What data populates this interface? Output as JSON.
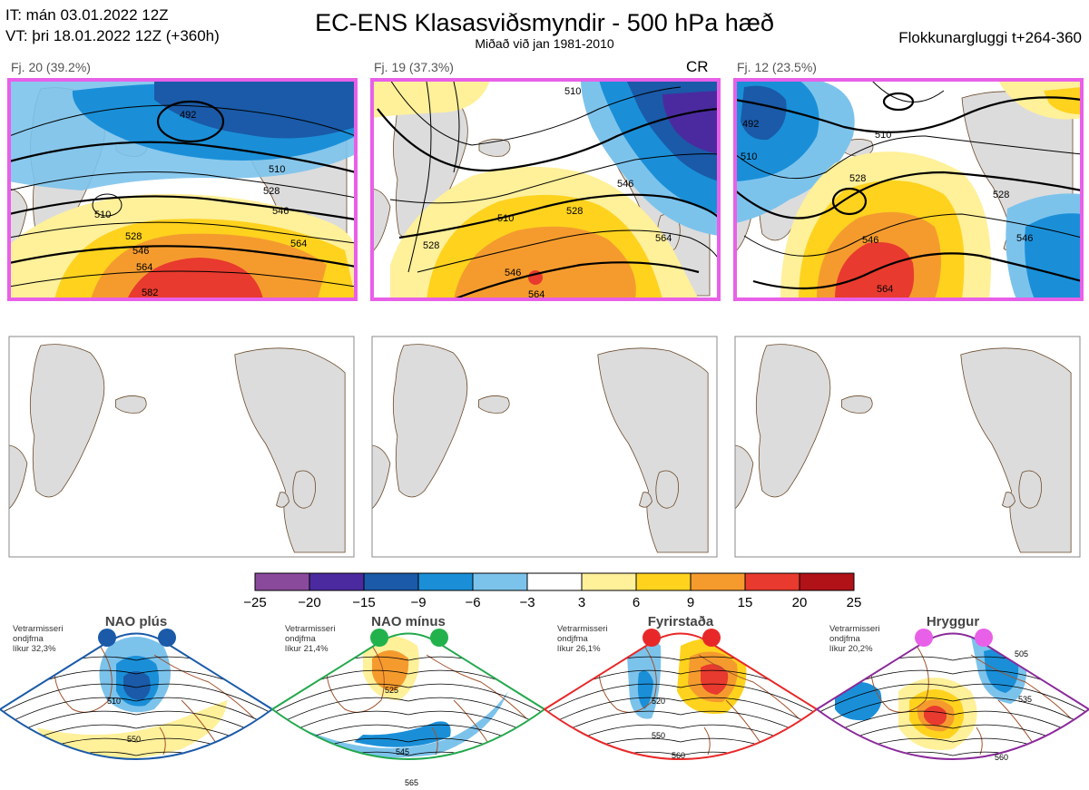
{
  "header": {
    "it_line": "IT: mán 03.01.2022 12Z",
    "vt_line": "VT: þri 18.01.2022 12Z  (+360h)",
    "title": "EC-ENS Klasasviðsmyndir - 500 hPa hæð",
    "subtitle": "Miðað við jan 1981-2010",
    "window_label": "Flokkunargluggi t+264-360"
  },
  "clusters": [
    {
      "label": "Fj. 20 (39.2%)",
      "flag": "",
      "border_color": "#e860e8",
      "contours": [
        "492",
        "510",
        "528",
        "546",
        "564",
        "510",
        "528",
        "546",
        "564",
        "582"
      ]
    },
    {
      "label": "Fj. 19 (37.3%)",
      "flag": "CR",
      "border_color": "#e860e8",
      "contours": [
        "510",
        "528",
        "546",
        "564",
        "510",
        "528",
        "546",
        "564"
      ]
    },
    {
      "label": "Fj. 12 (23.5%)",
      "flag": "",
      "border_color": "#e860e8",
      "contours": [
        "492",
        "510",
        "510",
        "528",
        "528",
        "546",
        "564",
        "546"
      ]
    }
  ],
  "colorbar": {
    "ticks": [
      "−25",
      "−20",
      "−15",
      "−9",
      "−6",
      "−3",
      "3",
      "6",
      "9",
      "15",
      "20",
      "25"
    ],
    "colors": [
      "#8a4a9c",
      "#4b2aa0",
      "#1a5aa8",
      "#1a8fd8",
      "#7cc3ec",
      "#ffffff",
      "#fff09a",
      "#ffd21e",
      "#f59b2e",
      "#e83a2e",
      "#b01218"
    ]
  },
  "regimes": [
    {
      "name": "NAO plús",
      "note_l1": "Vetrarmisseri",
      "note_l2": "ondjfma",
      "note_l3": "líkur 32,3%",
      "dot_color": "#1a5aa8",
      "border_color": "#1a5aa8",
      "contours": [
        "510",
        "550"
      ]
    },
    {
      "name": "NAO mínus",
      "note_l1": "Vetrarmisseri",
      "note_l2": "ondjfma",
      "note_l3": "líkur 21,4%",
      "dot_color": "#22b24c",
      "border_color": "#22a84c",
      "contours": [
        "525",
        "545",
        "565"
      ]
    },
    {
      "name": "Fyrirstaða",
      "note_l1": "Vetrarmisseri",
      "note_l2": "ondjfma",
      "note_l3": "líkur 26,1%",
      "dot_color": "#e82828",
      "border_color": "#e82828",
      "contours": [
        "520",
        "550",
        "560"
      ]
    },
    {
      "name": "Hryggur",
      "note_l1": "Vetrarmisseri",
      "note_l2": "ondjfma",
      "note_l3": "líkur 20,2%",
      "dot_color": "#e860e8",
      "border_color": "#8a2a9a",
      "contours": [
        "505",
        "535",
        "560"
      ]
    }
  ]
}
